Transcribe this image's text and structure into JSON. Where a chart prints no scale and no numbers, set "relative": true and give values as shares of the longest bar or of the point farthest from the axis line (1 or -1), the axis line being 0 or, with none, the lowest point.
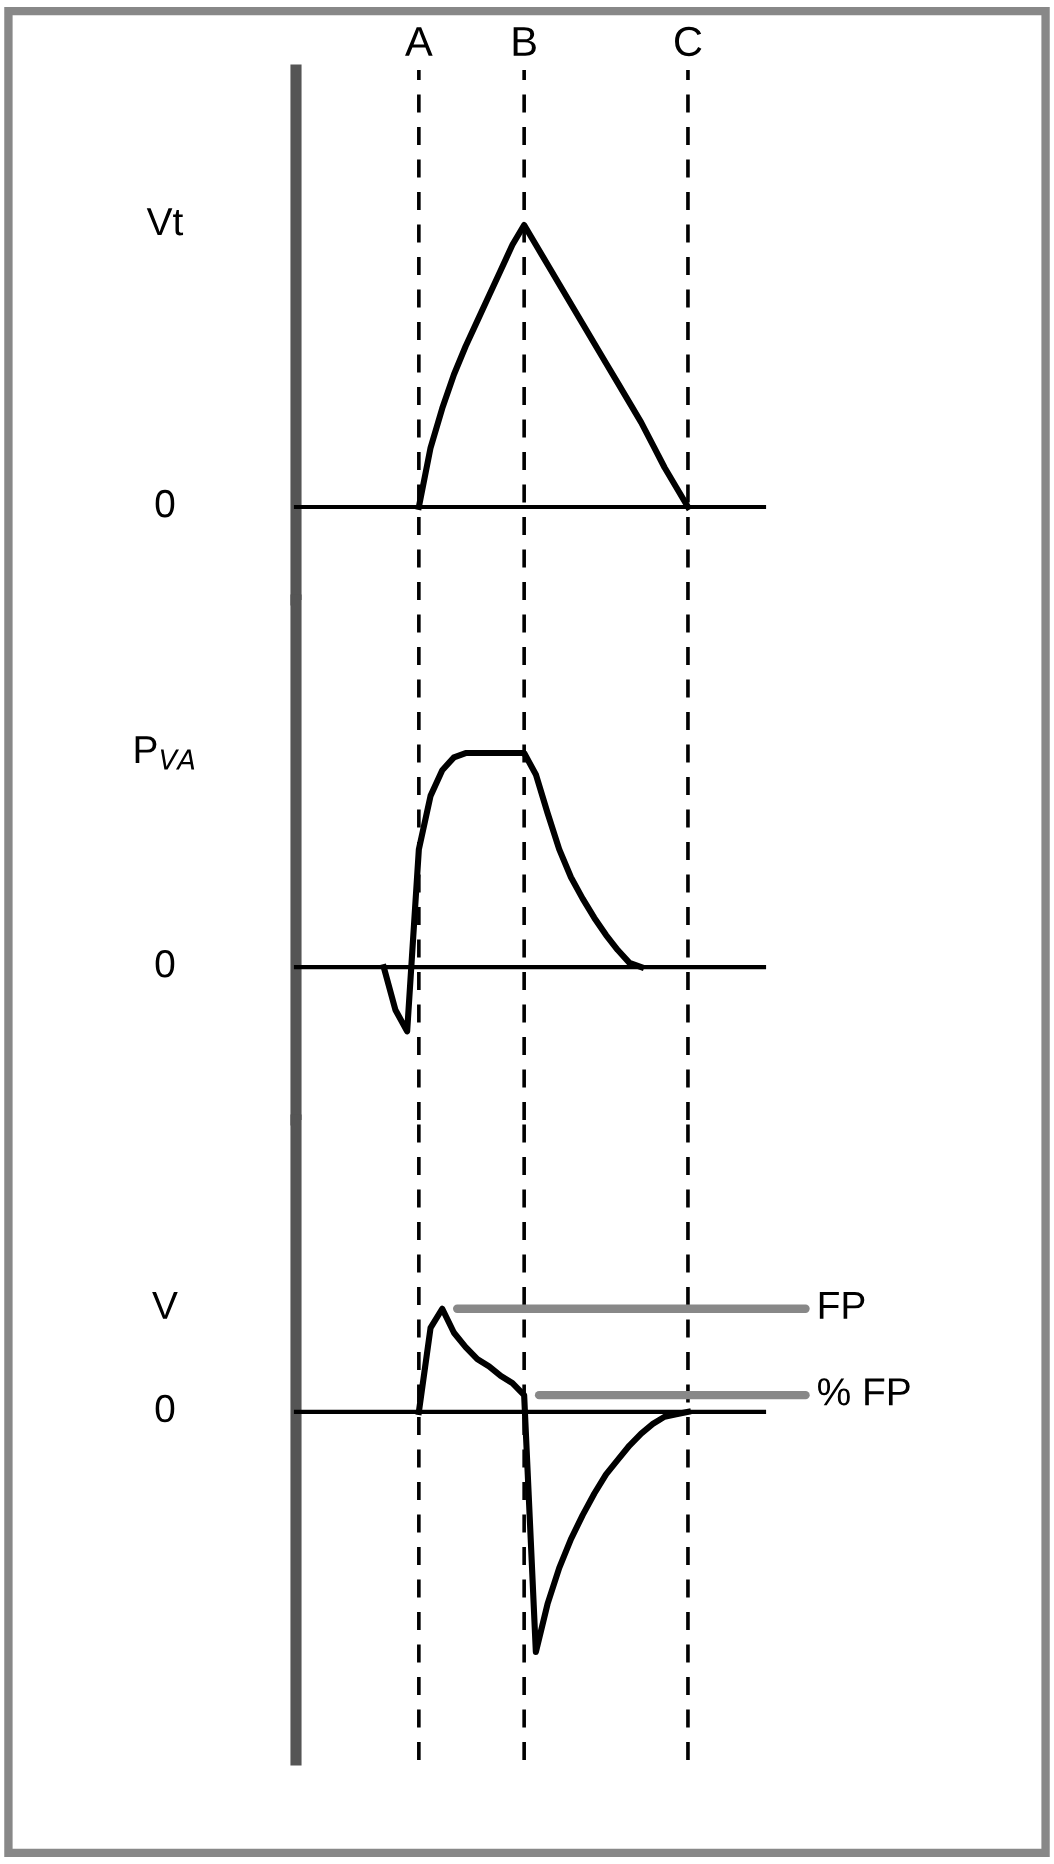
{
  "chart_data": [
    {
      "type": "line",
      "relative": true,
      "ylabel": "Vt",
      "tick_labels": "x",
      "line_style": "solid",
      "marker": "none",
      "grid": false,
      "legend": false,
      "categories": [
        null,
        null,
        null,
        null,
        null,
        null,
        null,
        null,
        null,
        null,
        "A",
        null,
        null,
        null,
        null,
        null,
        null,
        null,
        null,
        "B",
        null,
        null,
        null,
        null,
        null,
        null,
        null,
        null,
        null,
        null,
        null,
        null,
        null,
        "C",
        null,
        null,
        null,
        null,
        null,
        null
      ],
      "series": [
        {
          "color": "#000000",
          "values": [
            null,
            null,
            null,
            null,
            null,
            null,
            null,
            null,
            null,
            null,
            0,
            0.21,
            0.35,
            0.47,
            0.57,
            0.66,
            0.75,
            0.84,
            0.93,
            1.0,
            0.93,
            0.86,
            0.79,
            0.72,
            0.65,
            0.58,
            0.51,
            0.44,
            0.37,
            0.3,
            0.22,
            0.14,
            0.07,
            0,
            null,
            null,
            null,
            null,
            null,
            null
          ]
        }
      ],
      "ref_lines": [
        {
          "axis": "x",
          "value": "A",
          "line_style": "dashed"
        },
        {
          "axis": "x",
          "value": "B",
          "line_style": "dashed"
        },
        {
          "axis": "x",
          "value": "C",
          "line_style": "dashed"
        }
      ],
      "annotations": [
        "0"
      ]
    },
    {
      "type": "line",
      "relative": true,
      "ylabel": "P$_{VA}$",
      "tick_labels": false,
      "line_style": "solid",
      "marker": "none",
      "grid": false,
      "legend": false,
      "categories": [
        null,
        null,
        null,
        null,
        null,
        null,
        null,
        null,
        null,
        null,
        "A",
        null,
        null,
        null,
        null,
        null,
        null,
        null,
        null,
        "B",
        null,
        null,
        null,
        null,
        null,
        null,
        null,
        null,
        null,
        null,
        null,
        null,
        null,
        "C",
        null,
        null,
        null,
        null,
        null,
        null
      ],
      "series": [
        {
          "color": "#000000",
          "values": [
            null,
            null,
            null,
            null,
            null,
            null,
            null,
            0,
            -0.2,
            -0.3,
            0.55,
            0.8,
            0.92,
            0.98,
            1.0,
            1.0,
            1.0,
            1.0,
            1.0,
            1.0,
            0.9,
            0.72,
            0.55,
            0.42,
            0.32,
            0.23,
            0.15,
            0.08,
            0.02,
            0,
            null,
            null,
            null,
            null,
            null,
            null,
            null,
            null,
            null,
            null
          ]
        }
      ],
      "ref_lines": [
        {
          "axis": "x",
          "value": "A",
          "line_style": "dashed"
        },
        {
          "axis": "x",
          "value": "B",
          "line_style": "dashed"
        },
        {
          "axis": "x",
          "value": "C",
          "line_style": "dashed"
        }
      ],
      "annotations": [
        "0"
      ]
    },
    {
      "type": "line",
      "relative": true,
      "ylabel": "V",
      "tick_labels": false,
      "line_style": "solid",
      "marker": "none",
      "grid": false,
      "legend": false,
      "categories": [
        null,
        null,
        null,
        null,
        null,
        null,
        null,
        null,
        null,
        null,
        "A",
        null,
        null,
        null,
        null,
        null,
        null,
        null,
        null,
        "B",
        null,
        null,
        null,
        null,
        null,
        null,
        null,
        null,
        null,
        null,
        null,
        null,
        null,
        "C",
        null,
        null,
        null,
        null,
        null,
        null
      ],
      "series": [
        {
          "color": "#000000",
          "values": [
            null,
            null,
            null,
            null,
            null,
            null,
            null,
            null,
            null,
            null,
            0,
            0.35,
            0.43,
            0.33,
            0.27,
            0.22,
            0.19,
            0.15,
            0.12,
            0.07,
            -1.0,
            -0.8,
            -0.65,
            -0.53,
            -0.43,
            -0.34,
            -0.26,
            -0.2,
            -0.14,
            -0.09,
            -0.05,
            -0.02,
            -0.01,
            0,
            null,
            null,
            null,
            null,
            null,
            null
          ]
        }
      ],
      "ref_lines": [
        {
          "axis": "x",
          "value": "A",
          "line_style": "dashed"
        },
        {
          "axis": "x",
          "value": "B",
          "line_style": "dashed"
        },
        {
          "axis": "x",
          "value": "C",
          "line_style": "dashed"
        }
      ],
      "annotations": [
        "0",
        "FP",
        "% FP"
      ]
    }
  ]
}
